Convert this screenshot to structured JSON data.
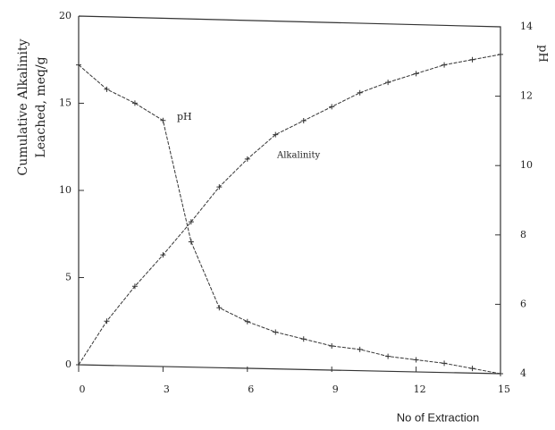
{
  "chart_data": {
    "type": "line",
    "y_label": [
      "Cumulative Alkalinity",
      "Leached, meq/g"
    ],
    "y2_label": "pH",
    "x_label": "No of Extraction",
    "annotations": [
      "pH",
      "Alkalinity"
    ],
    "x": [
      0,
      1,
      2,
      3,
      4,
      5,
      6,
      7,
      8,
      9,
      10,
      11,
      12,
      13,
      14,
      15
    ],
    "xlim": [
      0,
      15
    ],
    "xticks": [
      0,
      3,
      6,
      9,
      12,
      15
    ],
    "ylim": [
      0,
      20
    ],
    "yticks": [
      0,
      5,
      10,
      15,
      20
    ],
    "y2lim": [
      4,
      14
    ],
    "y2ticks": [
      4,
      6,
      8,
      10,
      12,
      14
    ],
    "series": [
      {
        "name": "pH",
        "axis": "y2",
        "color": "#333333",
        "values": [
          12.9,
          12.2,
          11.8,
          11.3,
          7.8,
          5.9,
          5.5,
          5.2,
          5.0,
          4.8,
          4.7,
          4.5,
          4.4,
          4.3,
          4.15,
          4.0
        ]
      },
      {
        "name": "Alkalinity",
        "color": "#333333",
        "values": [
          0,
          2.5,
          4.5,
          6.3,
          8.2,
          10.2,
          11.8,
          13.2,
          14.0,
          14.8,
          15.6,
          16.2,
          16.7,
          17.2,
          17.5,
          17.8
        ]
      }
    ]
  }
}
